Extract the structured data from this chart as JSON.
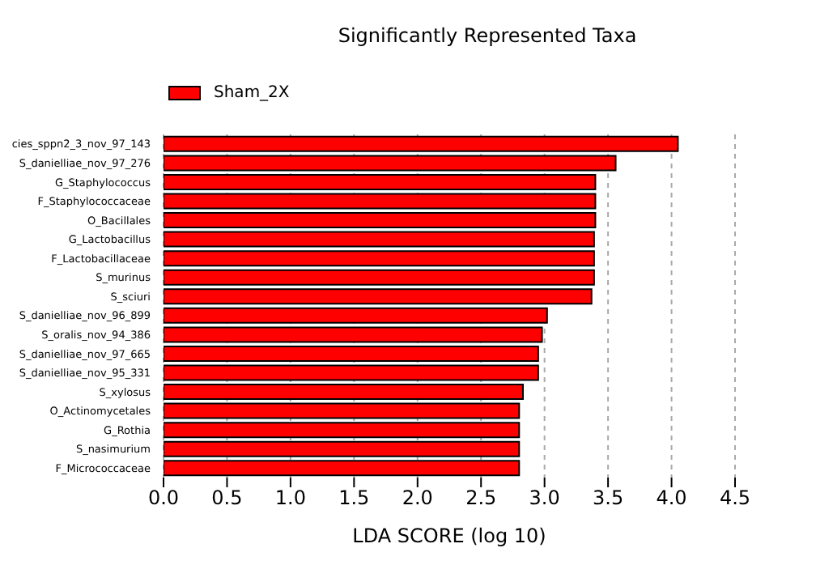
{
  "chart_data": {
    "type": "bar",
    "orientation": "horizontal",
    "title": "Significantly Represented Taxa",
    "xlabel": "LDA SCORE (log 10)",
    "categories": [
      "cies_sppn2_3_nov_97_143",
      "S_danielliae_nov_97_276",
      "G_Staphylococcus",
      "F_Staphylococcaceae",
      "O_Bacillales",
      "G_Lactobacillus",
      "F_Lactobacillaceae",
      "S_murinus",
      "S_sciuri",
      "S_danielliae_nov_96_899",
      "S_oralis_nov_94_386",
      "S_danielliae_nov_97_665",
      "S_danielliae_nov_95_331",
      "S_xylosus",
      "O_Actinomycetales",
      "G_Rothia",
      "S_nasimurium",
      "F_Micrococcaceae"
    ],
    "series": [
      {
        "name": "Sham_2X",
        "color": "#ff0000",
        "values": [
          4.05,
          3.56,
          3.4,
          3.4,
          3.4,
          3.39,
          3.39,
          3.39,
          3.37,
          3.02,
          2.98,
          2.95,
          2.95,
          2.83,
          2.8,
          2.8,
          2.8,
          2.8
        ]
      }
    ],
    "xlim": [
      0,
      4.5
    ],
    "xticks": [
      {
        "value": 0,
        "label": "0.0"
      },
      {
        "value": 0.5,
        "label": "0.5"
      },
      {
        "value": 1,
        "label": "1.0"
      },
      {
        "value": 1.5,
        "label": "1.5"
      },
      {
        "value": 2,
        "label": "2.0"
      },
      {
        "value": 2.5,
        "label": "2.5"
      },
      {
        "value": 3,
        "label": "3.0"
      },
      {
        "value": 3.5,
        "label": "3.5"
      },
      {
        "value": 4,
        "label": "4.0"
      },
      {
        "value": 4.5,
        "label": "4.5"
      }
    ],
    "grid": "x",
    "legend": "top left"
  }
}
